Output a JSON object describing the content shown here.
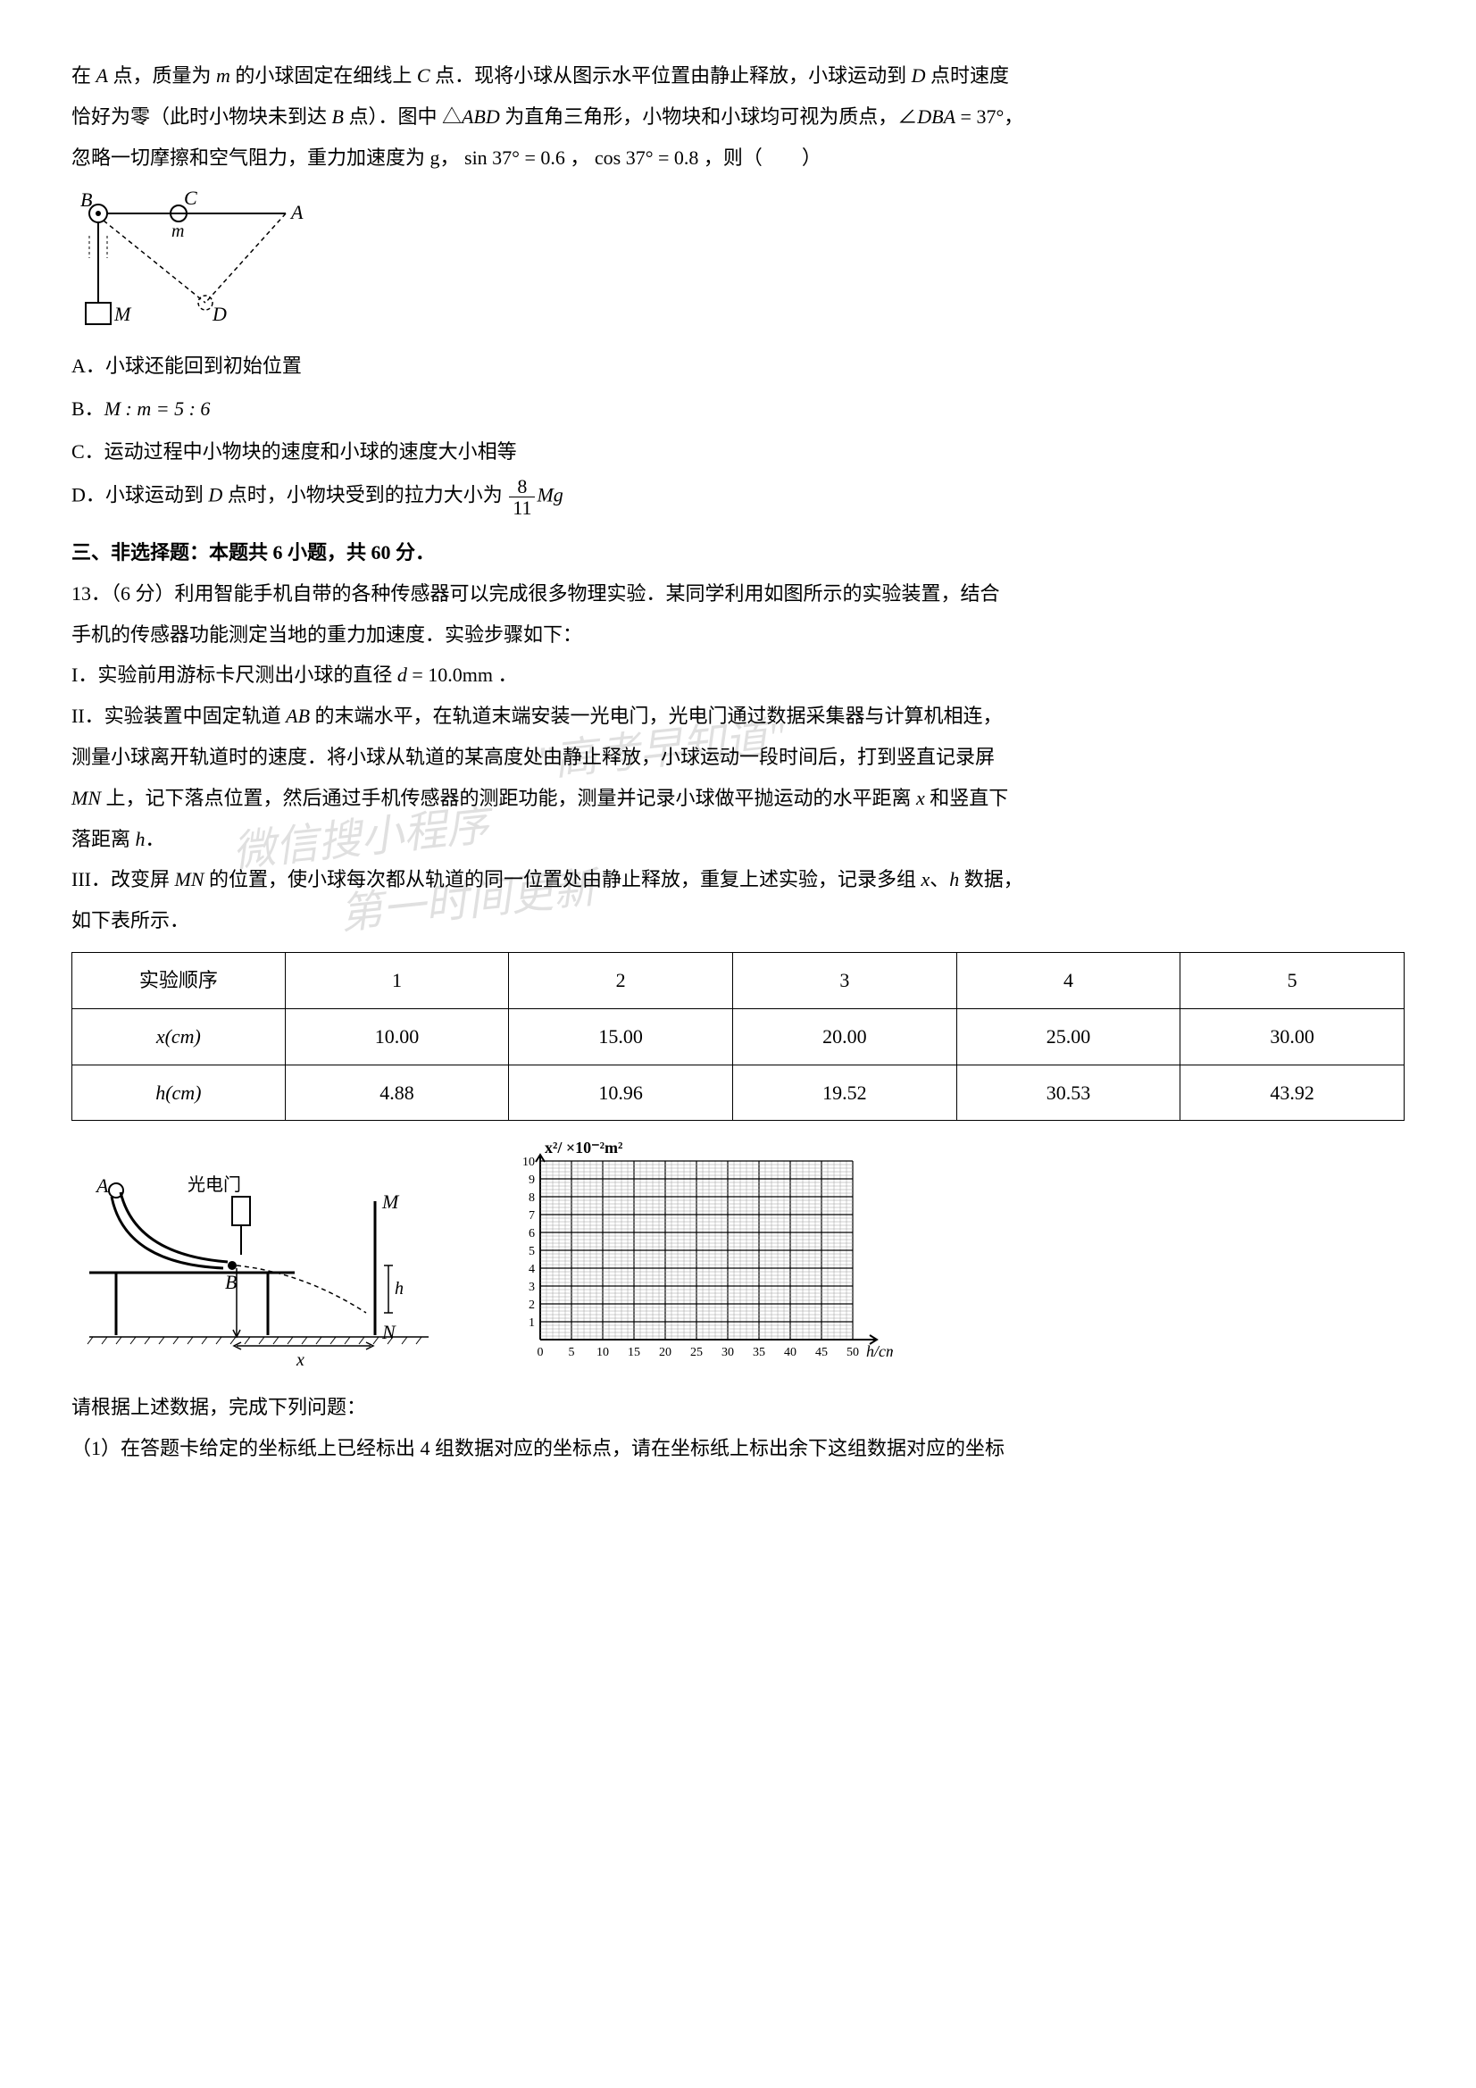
{
  "intro": {
    "p1_prefix": "在 ",
    "p1_A": "A",
    "p1_mid1": " 点，质量为 ",
    "p1_m": "m",
    "p1_mid2": " 的小球固定在细线上 ",
    "p1_C": "C",
    "p1_mid3": " 点．现将小球从图示水平位置由静止释放，小球运动到 ",
    "p1_D": "D",
    "p1_mid4": " 点时速度",
    "p2_prefix": "恰好为零（此时小物块未到达 ",
    "p2_B": "B",
    "p2_mid1": " 点）．图中 △",
    "p2_ABD": "ABD",
    "p2_mid2": " 为直角三角形，小物块和小球均可视为质点，∠",
    "p2_DBA": "DBA",
    "p2_mid3": " = 37°，",
    "p3": "忽略一切摩擦和空气阻力，重力加速度为 g，  sin 37° = 0.6 ， cos 37° = 0.8 ，则（　　）"
  },
  "options": {
    "A": "A．小球还能回到初始位置",
    "B_prefix": "B．",
    "B_expr": "M : m = 5 : 6",
    "C": "C．运动过程中小物块的速度和小球的速度大小相等",
    "D_prefix": "D．小球运动到 ",
    "D_D": "D",
    "D_mid": " 点时，小物块受到的拉力大小为 ",
    "D_num": "8",
    "D_den": "11",
    "D_Mg": "Mg"
  },
  "section3": {
    "title": "三、非选择题：本题共 6 小题，共 60 分．",
    "q13a": "13．（6 分）利用智能手机自带的各种传感器可以完成很多物理实验．某同学利用如图所示的实验装置，结合",
    "q13b": "手机的传感器功能测定当地的重力加速度．实验步骤如下：",
    "step1_label": "I．实验前用游标卡尺测出小球的直径 ",
    "step1_d": "d",
    "step1_eq": " = 10.0mm ．",
    "step2a_label": "II．实验装置中固定轨道 ",
    "step2a_AB": "AB",
    "step2a_mid": " 的末端水平，在轨道末端安装一光电门，光电门通过数据采集器与计算机相连，",
    "step2b": "测量小球离开轨道时的速度．将小球从轨道的某高度处由静止释放，小球运动一段时间后，打到竖直记录屏",
    "step2c_MN1": "MN",
    "step2c_mid1": " 上，记下落点位置，然后通过手机传感器的测距功能，测量并记录小球做平抛运动的水平距离 ",
    "step2c_x": "x",
    "step2c_mid2": " 和竖直下",
    "step2d_prefix": "落距离 ",
    "step2d_h": "h",
    "step2d_suffix": "．",
    "step3a_label": "III．改变屏 ",
    "step3a_MN": "MN",
    "step3a_mid": " 的位置，使小球每次都从轨道的同一位置处由静止释放，重复上述实验，记录多组 ",
    "step3a_x": "x",
    "step3a_sep": "、",
    "step3a_h": "h",
    "step3a_suffix": " 数据，",
    "step3b": "如下表所示．"
  },
  "table": {
    "headers": [
      "实验顺序",
      "1",
      "2",
      "3",
      "4",
      "5"
    ],
    "row_x_label": "x(cm)",
    "row_x": [
      "10.00",
      "15.00",
      "20.00",
      "25.00",
      "30.00"
    ],
    "row_h_label": "h(cm)",
    "row_h": [
      "4.88",
      "10.96",
      "19.52",
      "30.53",
      "43.92"
    ]
  },
  "graph": {
    "ylabel": "x²/ ×10⁻²m²",
    "xlabel": "h/cm",
    "yticks": [
      "1",
      "2",
      "3",
      "4",
      "5",
      "6",
      "7",
      "8",
      "9",
      "10"
    ],
    "xticks": [
      "0",
      "5",
      "10",
      "15",
      "20",
      "25",
      "30",
      "35",
      "40",
      "45",
      "50"
    ]
  },
  "apparatus": {
    "gate_label": "光电门",
    "A": "A",
    "B": "B",
    "M": "M",
    "N": "N",
    "h": "h",
    "x": "x"
  },
  "q12fig": {
    "A": "A",
    "B": "B",
    "C": "C",
    "D": "D",
    "M": "M",
    "m": "m"
  },
  "bottom": {
    "prompt": "请根据上述数据，完成下列问题：",
    "q1": "（1）在答题卡给定的坐标纸上已经标出 4 组数据对应的坐标点，请在坐标纸上标出余下这组数据对应的坐标"
  },
  "watermarks": {
    "w1": "\"高考早知道\"",
    "w2": "微信搜小程序",
    "w3": "第一时间更新"
  },
  "colors": {
    "text": "#000000",
    "bg": "#ffffff",
    "wm": "rgba(0,0,0,0.12)",
    "grid_minor": "#bdbdbd",
    "grid_major": "#000000"
  }
}
